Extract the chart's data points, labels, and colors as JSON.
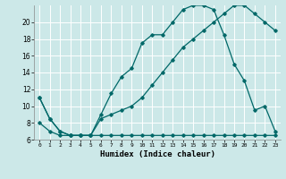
{
  "title": "",
  "xlabel": "Humidex (Indice chaleur)",
  "background_color": "#cce8e8",
  "line_color": "#006868",
  "xlim": [
    -0.5,
    23.5
  ],
  "ylim": [
    6,
    22
  ],
  "yticks": [
    6,
    8,
    10,
    12,
    14,
    16,
    18,
    20
  ],
  "xticks": [
    0,
    1,
    2,
    3,
    4,
    5,
    6,
    7,
    8,
    9,
    10,
    11,
    12,
    13,
    14,
    15,
    16,
    17,
    18,
    19,
    20,
    21,
    22,
    23
  ],
  "curve1_x": [
    0,
    1,
    2,
    3,
    4,
    5,
    6,
    7,
    8,
    9,
    10,
    11,
    12,
    13,
    14,
    15,
    16,
    17,
    18,
    19,
    20,
    21,
    22,
    23
  ],
  "curve1_y": [
    11,
    8.5,
    7,
    6.5,
    6.5,
    6.5,
    9,
    11.5,
    13.5,
    14.5,
    17.5,
    18.5,
    18.5,
    20,
    21.5,
    22,
    22,
    21.5,
    18.5,
    15,
    13,
    9.5,
    10,
    7
  ],
  "curve2_x": [
    0,
    1,
    2,
    3,
    4,
    5,
    6,
    7,
    8,
    9,
    10,
    11,
    12,
    13,
    14,
    15,
    16,
    17,
    18,
    19,
    20,
    21,
    22,
    23
  ],
  "curve2_y": [
    8,
    7,
    6.5,
    6.5,
    6.5,
    6.5,
    8.5,
    9,
    9.5,
    10,
    11,
    12.5,
    14,
    15.5,
    17,
    18,
    19,
    20,
    21,
    22,
    22,
    21,
    20,
    19
  ],
  "curve3_x": [
    0,
    1,
    2,
    3,
    4,
    5,
    6,
    7,
    8,
    9,
    10,
    11,
    12,
    13,
    14,
    15,
    16,
    17,
    18,
    19,
    20,
    21,
    22,
    23
  ],
  "curve3_y": [
    11,
    8.5,
    7,
    6.5,
    6.5,
    6.5,
    6.5,
    6.5,
    6.5,
    6.5,
    6.5,
    6.5,
    6.5,
    6.5,
    6.5,
    6.5,
    6.5,
    6.5,
    6.5,
    6.5,
    6.5,
    6.5,
    6.5,
    6.5
  ]
}
